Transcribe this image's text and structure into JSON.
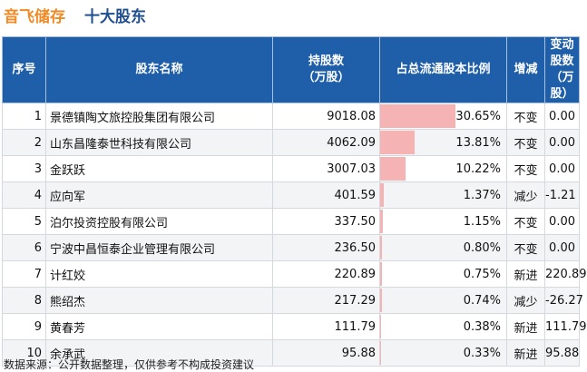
{
  "header": {
    "company": "音飞储存",
    "subtitle": "十大股东"
  },
  "columns": {
    "index": "序号",
    "name": "股东名称",
    "holding": "持股数\n（万股）",
    "ratio": "占总流通股本比例",
    "change": "增减",
    "delta": "变动股数\n（万股）"
  },
  "rows": [
    {
      "index": "1",
      "name": "景德镇陶文旅控股集团有限公司",
      "holding": "9018.08",
      "ratio": "30.65%",
      "ratio_value": 30.65,
      "change": "不变",
      "change_kind": "same",
      "delta": "0.00"
    },
    {
      "index": "2",
      "name": "山东昌隆泰世科技有限公司",
      "holding": "4062.09",
      "ratio": "13.81%",
      "ratio_value": 13.81,
      "change": "不变",
      "change_kind": "same",
      "delta": "0.00"
    },
    {
      "index": "3",
      "name": "金跃跃",
      "holding": "3007.03",
      "ratio": "10.22%",
      "ratio_value": 10.22,
      "change": "不变",
      "change_kind": "same",
      "delta": "0.00"
    },
    {
      "index": "4",
      "name": "应向军",
      "holding": "401.59",
      "ratio": "1.37%",
      "ratio_value": 1.37,
      "change": "减少",
      "change_kind": "down",
      "delta": "-1.21"
    },
    {
      "index": "5",
      "name": "泊尔投资控股有限公司",
      "holding": "337.50",
      "ratio": "1.15%",
      "ratio_value": 1.15,
      "change": "不变",
      "change_kind": "same",
      "delta": "0.00"
    },
    {
      "index": "6",
      "name": "宁波中昌恒泰企业管理有限公司",
      "holding": "236.50",
      "ratio": "0.80%",
      "ratio_value": 0.8,
      "change": "不变",
      "change_kind": "same",
      "delta": "0.00"
    },
    {
      "index": "7",
      "name": "计红姣",
      "holding": "220.89",
      "ratio": "0.75%",
      "ratio_value": 0.75,
      "change": "新进",
      "change_kind": "new",
      "delta": "220.89"
    },
    {
      "index": "8",
      "name": "熊绍杰",
      "holding": "217.29",
      "ratio": "0.74%",
      "ratio_value": 0.74,
      "change": "减少",
      "change_kind": "down",
      "delta": "-26.27"
    },
    {
      "index": "9",
      "name": "黄春芳",
      "holding": "111.79",
      "ratio": "0.38%",
      "ratio_value": 0.38,
      "change": "新进",
      "change_kind": "new",
      "delta": "111.79"
    },
    {
      "index": "10",
      "name": "余承武",
      "holding": "95.88",
      "ratio": "0.33%",
      "ratio_value": 0.33,
      "change": "新进",
      "change_kind": "new",
      "delta": "95.88"
    }
  ],
  "footer": "数据来源：公开数据整理，仅供参考不构成投资建议",
  "colors": {
    "header_bg": "#1f5ea8",
    "bar": "#f6b3b3",
    "increase": "#e02020",
    "decrease": "#2a9d3a",
    "brand": "#f08a24"
  }
}
